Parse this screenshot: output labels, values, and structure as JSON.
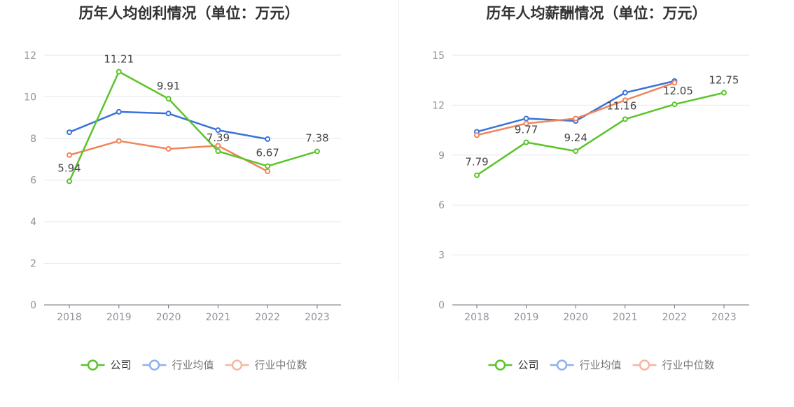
{
  "chart_data": [
    {
      "type": "line",
      "title": "历年人均创利情况（单位：万元）",
      "categories": [
        "2018",
        "2019",
        "2020",
        "2021",
        "2022",
        "2023"
      ],
      "ylim": [
        0,
        12
      ],
      "yticks": [
        "0",
        "2",
        "4",
        "6",
        "8",
        "10",
        "12"
      ],
      "grid": true,
      "legend_position": "bottom-center",
      "series": [
        {
          "name": "公司",
          "color": "#5bc42b",
          "values": [
            5.94,
            11.21,
            9.91,
            7.39,
            6.67,
            7.38
          ],
          "labels": [
            "5.94",
            "11.21",
            "9.91",
            "7.39",
            "6.67",
            "7.38"
          ]
        },
        {
          "name": "行业均值",
          "color": "#3a72d8",
          "values": [
            8.3,
            9.28,
            9.2,
            8.4,
            7.97,
            null
          ]
        },
        {
          "name": "行业中位数",
          "color": "#f0855a",
          "values": [
            7.2,
            7.88,
            7.5,
            7.65,
            6.42,
            null
          ]
        }
      ]
    },
    {
      "type": "line",
      "title": "历年人均薪酬情况（单位：万元）",
      "categories": [
        "2018",
        "2019",
        "2020",
        "2021",
        "2022",
        "2023"
      ],
      "ylim": [
        0,
        15
      ],
      "yticks": [
        "0",
        "3",
        "6",
        "9",
        "12",
        "15"
      ],
      "grid": true,
      "legend_position": "bottom-center",
      "series": [
        {
          "name": "公司",
          "color": "#5bc42b",
          "values": [
            7.79,
            9.77,
            9.24,
            11.16,
            12.05,
            12.75
          ],
          "labels": [
            "7.79",
            "9.77",
            "9.24",
            "11.16",
            "12.05",
            "12.75"
          ]
        },
        {
          "name": "行业均值",
          "color": "#3a72d8",
          "values": [
            10.4,
            11.2,
            11.05,
            12.75,
            13.45,
            null
          ]
        },
        {
          "name": "行业中位数",
          "color": "#f0855a",
          "values": [
            10.2,
            10.9,
            11.2,
            12.3,
            13.35,
            null
          ]
        }
      ]
    }
  ],
  "legend_colors": {
    "公司": "#5bc42b",
    "行业均值": "#8fb1ee",
    "行业中位数": "#f6b7a0"
  }
}
